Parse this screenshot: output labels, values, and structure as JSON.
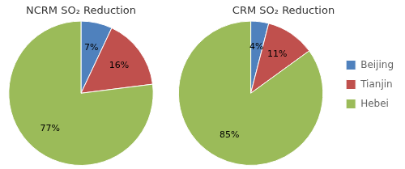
{
  "chart_data": [
    {
      "type": "pie",
      "title": "NCRM SO₂ Reduction",
      "categories": [
        "Beijing",
        "Tianjin",
        "Hebei"
      ],
      "values": [
        7,
        16,
        77
      ],
      "value_labels": [
        "7%",
        "16%",
        "77%"
      ],
      "colors": [
        "#4f81bd",
        "#c0504d",
        "#9bbb59"
      ],
      "data_labels": true
    },
    {
      "type": "pie",
      "title": "CRM SO₂ Reduction",
      "categories": [
        "Beijing",
        "Tianjin",
        "Hebei"
      ],
      "values": [
        4,
        11,
        85
      ],
      "value_labels": [
        "4%",
        "11%",
        "85%"
      ],
      "colors": [
        "#4f81bd",
        "#c0504d",
        "#9bbb59"
      ],
      "data_labels": true,
      "legend": "right"
    }
  ]
}
